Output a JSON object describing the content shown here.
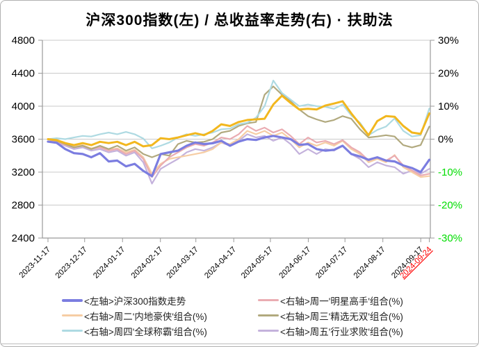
{
  "title": "沪深300指数(左) / 总收益率走势(右) · 扶助法",
  "colors": {
    "grid": "#C9C9C9",
    "axis": "#999999",
    "tick_text": "#000000",
    "negative_tick_text": "#00DD00",
    "highlight_date_text": "#FF0000",
    "background": "#FFFFFF"
  },
  "chart_data": {
    "type": "line",
    "title": "沪深300指数(左) / 总收益率走势(右) · 扶助法",
    "grid": "horizontal-only",
    "left_axis": {
      "ticks": [
        4800,
        4400,
        4000,
        3600,
        3200,
        2800,
        2400
      ],
      "range": [
        2400,
        4800
      ]
    },
    "right_axis": {
      "ticks": [
        "30%",
        "20%",
        "10%",
        "0%",
        "-10%",
        "-20%",
        "-30%"
      ],
      "range_pct": [
        -30,
        30
      ]
    },
    "x_axis": {
      "tick_labels": [
        "2023-11-17",
        "2023-12-17",
        "2024-01-17",
        "2024-02-17",
        "2024-03-17",
        "2024-04-17",
        "2024-05-17",
        "2024-06-17",
        "2024-07-17",
        "2024-08-17",
        "2024-09-17",
        "2024-09-24"
      ],
      "tick_day_offsets": [
        0,
        30,
        61,
        92,
        121,
        152,
        182,
        213,
        243,
        274,
        305,
        312
      ],
      "total_days": 312,
      "highlight_label": "2024-09-24"
    },
    "series": [
      {
        "id": "zhou5",
        "name": "<右轴>周五'行业求败'组合(%)",
        "axis": "right",
        "color": "#C4B2DC",
        "width": 2.2,
        "values": [
          0,
          -1,
          -2,
          -3,
          -2.5,
          -3.5,
          -3,
          -4,
          -3.5,
          -5,
          -4,
          -7,
          -13.5,
          -9,
          -7.5,
          -6,
          -4,
          -3,
          -3.5,
          -2.5,
          -1,
          -2,
          -0.5,
          1.5,
          0.5,
          1,
          -0.5,
          0.5,
          -1.5,
          -4.5,
          -3,
          -4.5,
          -3,
          -3.5,
          -2,
          -4.5,
          -6,
          -8.5,
          -7,
          -8,
          -8.5,
          -10.5,
          -9.5,
          -10.5,
          -9
        ]
      },
      {
        "id": "zhou2",
        "name": "<右轴>周二'内地豪侠'组合(%)",
        "axis": "right",
        "color": "#F6CDA4",
        "width": 2.2,
        "values": [
          0,
          -0.5,
          -1.5,
          -2.2,
          -1.8,
          -2.8,
          -2.2,
          -3.2,
          -2.8,
          -4,
          -3.2,
          -5.5,
          -10.5,
          -7.5,
          -6,
          -5.5,
          -5,
          -4.5,
          -4,
          -3,
          -1,
          -1.5,
          0,
          2.5,
          1.5,
          2.5,
          1,
          2,
          0,
          -2.5,
          -1,
          -2,
          -1,
          -2,
          -0.5,
          -3,
          -4.5,
          -7,
          -6,
          -7,
          -4.8,
          -8.5,
          -10,
          -11.5,
          -11.2
        ]
      },
      {
        "id": "zhou1",
        "name": "<右轴>周一'明星高手'组合(%)",
        "axis": "right",
        "color": "#EAACB2",
        "width": 2.2,
        "values": [
          0,
          -0.8,
          -1.8,
          -2.5,
          -2,
          -3,
          -2.5,
          -3.5,
          -3,
          -4.5,
          -3.5,
          -6,
          -11.5,
          -8,
          -5.5,
          -4,
          -2.5,
          -1.5,
          -2,
          -1,
          0.5,
          0,
          1.5,
          4,
          2.5,
          3.5,
          2,
          3,
          1,
          -1.5,
          0.5,
          -1,
          -0.5,
          -1.5,
          -0.3,
          -2.5,
          -4,
          -6.5,
          -5.5,
          -6.5,
          -5,
          -8,
          -9.5,
          -11,
          -10.5
        ]
      },
      {
        "id": "zhou3",
        "name": "<右轴>周三'精选无双'组合(%)",
        "axis": "right",
        "color": "#B1A97E",
        "width": 2.2,
        "values": [
          0,
          -0.5,
          -1.5,
          -2.5,
          -2,
          -3,
          -2,
          -3,
          -2,
          -3.5,
          -2.5,
          -4.5,
          -5.5,
          -4.5,
          -5,
          -1.5,
          -0.5,
          -1,
          -0.8,
          0,
          2,
          2.5,
          4,
          4.8,
          5.2,
          13.5,
          16,
          13.5,
          11.5,
          9,
          7,
          6,
          5.2,
          5.8,
          7,
          6.2,
          3,
          0.5,
          0.8,
          1.2,
          0.8,
          -1.8,
          -2.5,
          -1.8,
          3.8
        ]
      },
      {
        "id": "zhou4",
        "name": "<右轴>周四'全球称霸'组合(%)",
        "axis": "right",
        "color": "#AEDAE2",
        "width": 2.2,
        "values": [
          0,
          0.3,
          0,
          0.5,
          1,
          0.8,
          1.5,
          2,
          1.5,
          2.2,
          1.5,
          0.2,
          -2.8,
          -2,
          -1,
          0.5,
          1.5,
          1,
          1.5,
          2,
          3,
          3.2,
          4.5,
          5,
          6.5,
          10,
          17.8,
          14,
          12,
          10,
          10.5,
          10,
          9.8,
          9.2,
          10.5,
          7.2,
          5,
          1.2,
          2.8,
          3.8,
          6.3,
          2.5,
          0.8,
          1.2,
          9.3
        ]
      },
      {
        "id": "hs300",
        "name": "<左轴>沪深300指数走势",
        "axis": "left",
        "color": "#7B7DE0",
        "width": 3.2,
        "values": [
          3570,
          3555,
          3480,
          3430,
          3420,
          3380,
          3430,
          3330,
          3340,
          3270,
          3300,
          3215,
          3150,
          3420,
          3440,
          3460,
          3520,
          3560,
          3540,
          3550,
          3580,
          3520,
          3570,
          3600,
          3590,
          3620,
          3640,
          3620,
          3600,
          3530,
          3540,
          3480,
          3460,
          3470,
          3520,
          3420,
          3390,
          3350,
          3380,
          3340,
          3330,
          3280,
          3250,
          3200,
          3350
        ]
      },
      {
        "id": "gold-unlabeled",
        "name": "",
        "axis": "right",
        "color": "#F2B71E",
        "width": 3,
        "values": [
          0,
          -0.3,
          -1.2,
          -1.8,
          -1.2,
          -1.8,
          -0.8,
          -1.2,
          -0.8,
          -1.8,
          -0.8,
          -2.2,
          -1.8,
          0.3,
          0,
          0.5,
          1.2,
          1.8,
          1.2,
          2.5,
          4.5,
          4,
          5.2,
          5.8,
          6,
          6.2,
          10.5,
          13.2,
          11,
          9,
          9.2,
          9,
          10.2,
          10.8,
          11.5,
          7.8,
          4.5,
          1.2,
          5.5,
          7,
          6.8,
          4,
          2,
          1.6,
          7.8
        ]
      }
    ]
  },
  "legend": {
    "items": [
      {
        "label": "<左轴>沪深300指数走势",
        "color": "#7B7DE0",
        "thick": true
      },
      {
        "label": "<右轴>周一'明星高手'组合(%)",
        "color": "#EAACB2",
        "thick": false
      },
      {
        "label": "<右轴>周二'内地豪侠'组合(%)",
        "color": "#F6CDA4",
        "thick": false
      },
      {
        "label": "<右轴>周三'精选无双'组合(%)",
        "color": "#B1A97E",
        "thick": false
      },
      {
        "label": "<右轴>周四'全球称霸'组合(%)",
        "color": "#AEDAE2",
        "thick": false
      },
      {
        "label": "<右轴>周五'行业求败'组合(%)",
        "color": "#C4B2DC",
        "thick": false
      }
    ]
  }
}
